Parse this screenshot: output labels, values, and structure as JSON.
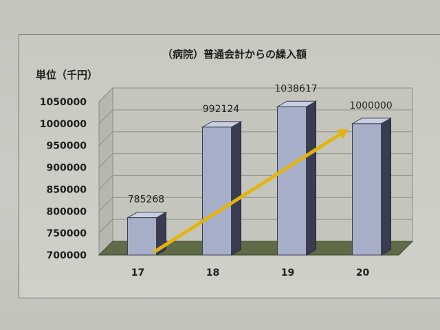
{
  "chart_data": {
    "type": "bar",
    "title": "（病院）普通会計からの繰入額",
    "ylabel": "単位（千円）",
    "categories": [
      "17",
      "18",
      "19",
      "20"
    ],
    "values": [
      785268,
      992124,
      1038617,
      1000000
    ],
    "data_labels": [
      "785268",
      "992124",
      "1038617",
      "1000000"
    ],
    "ylim": [
      700000,
      1050000
    ],
    "yticks": [
      "1050000",
      "1000000",
      "950000",
      "900000",
      "850000",
      "800000",
      "750000",
      "700000"
    ],
    "grid": true,
    "three_d": true,
    "trend_arrow": {
      "from_category": "17",
      "to_category": "20",
      "color": "#e3b40f"
    },
    "colors": {
      "bar_front": "#a7afc8",
      "bar_side": "#3a3d52",
      "floor": "#5f6a47",
      "wall": "#c6c8c0"
    }
  }
}
